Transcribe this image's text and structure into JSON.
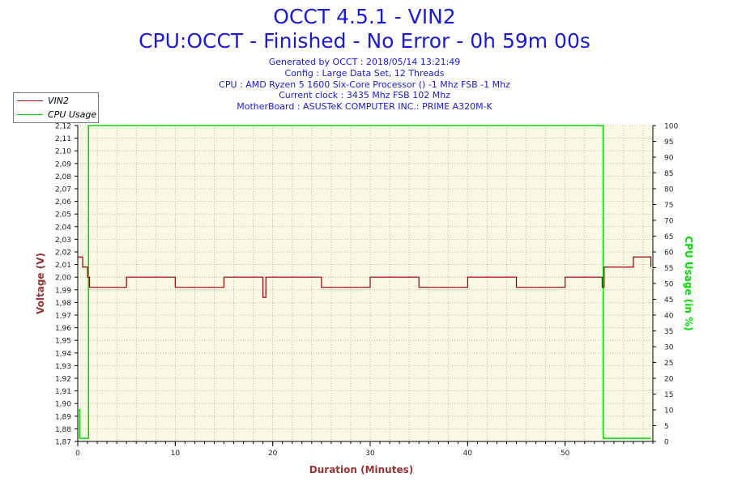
{
  "title": "OCCT 4.5.1 - VIN2",
  "subtitle": "CPU:OCCT - Finished - No Error - 0h 59m 00s",
  "info_lines": [
    "Generated by OCCT : 2018/05/14 13:21:49",
    "Config : Large Data Set, 12 Threads",
    "CPU : AMD Ryzen 5 1600 Six-Core Processor () -1 Mhz FSB -1 Mhz",
    "Current clock : 3435 Mhz FSB 102 Mhz",
    "MotherBoard : ASUSTeK COMPUTER INC.: PRIME A320M-K"
  ],
  "legend": [
    {
      "name": "VIN2",
      "color": "#990000"
    },
    {
      "name": "CPU Usage",
      "color": "#00dd00"
    }
  ],
  "colors": {
    "plot_bg": "#fbf8e6",
    "vin2": "#990000",
    "cpu": "#00dd00",
    "axis_left": "#993333",
    "axis_right": "#00dd00",
    "title": "#1a1adc"
  },
  "chart_data": {
    "type": "line",
    "title": "OCCT 4.5.1 - VIN2",
    "xlabel": "Duration (Minutes)",
    "ylabel": "Voltage (V)",
    "y2label": "CPU Usage (in %)",
    "xlim": [
      0,
      59
    ],
    "ylim": [
      1.87,
      2.12
    ],
    "y2lim": [
      0,
      100
    ],
    "x_ticks": [
      0,
      10,
      20,
      30,
      40,
      50
    ],
    "y_ticks": [
      "1,87",
      "1,88",
      "1,89",
      "1,90",
      "1,91",
      "1,92",
      "1,93",
      "1,94",
      "1,95",
      "1,96",
      "1,97",
      "1,98",
      "1,99",
      "2,00",
      "2,01",
      "2,02",
      "2,03",
      "2,04",
      "2,05",
      "2,06",
      "2,07",
      "2,08",
      "2,09",
      "2,10",
      "2,11",
      "2,12"
    ],
    "y2_ticks": [
      0,
      5,
      10,
      15,
      20,
      25,
      30,
      35,
      40,
      45,
      50,
      55,
      60,
      65,
      70,
      75,
      80,
      85,
      90,
      95,
      100
    ],
    "grid": true,
    "legend_position": "top-left",
    "series": [
      {
        "name": "VIN2",
        "axis": "left",
        "points": [
          [
            0,
            2.016
          ],
          [
            0.5,
            2.008
          ],
          [
            1.0,
            2.0
          ],
          [
            1.2,
            1.992
          ],
          [
            5,
            2.0
          ],
          [
            10,
            1.992
          ],
          [
            15,
            2.0
          ],
          [
            19.0,
            1.984
          ],
          [
            19.3,
            2.0
          ],
          [
            25,
            1.992
          ],
          [
            30,
            2.0
          ],
          [
            35,
            1.992
          ],
          [
            40,
            2.0
          ],
          [
            45,
            1.992
          ],
          [
            50,
            2.0
          ],
          [
            53.8,
            1.992
          ],
          [
            54.0,
            2.008
          ],
          [
            57,
            2.016
          ],
          [
            58.8,
            2.008
          ]
        ]
      },
      {
        "name": "CPU Usage",
        "axis": "right",
        "points": [
          [
            0,
            10
          ],
          [
            0.2,
            1
          ],
          [
            1.0,
            1
          ],
          [
            1.1,
            100
          ],
          [
            53.8,
            100
          ],
          [
            53.9,
            1
          ],
          [
            58.8,
            1
          ]
        ]
      }
    ]
  }
}
